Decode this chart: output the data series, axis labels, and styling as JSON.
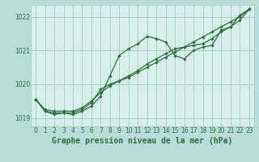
{
  "title": "Graphe pression niveau de la mer (hPa)",
  "background_color": "#b8ddd8",
  "plot_bg_color": "#d8eeea",
  "grid_color": "#99ccbb",
  "line_color": "#2d6e3e",
  "marker_color": "#2d6e3e",
  "xlim": [
    -0.5,
    23.5
  ],
  "ylim": [
    1018.75,
    1022.35
  ],
  "yticks": [
    1019,
    1020,
    1021,
    1022
  ],
  "xticks": [
    0,
    1,
    2,
    3,
    4,
    5,
    6,
    7,
    8,
    9,
    10,
    11,
    12,
    13,
    14,
    15,
    16,
    17,
    18,
    19,
    20,
    21,
    22,
    23
  ],
  "main": [
    1019.55,
    1019.2,
    1019.1,
    1019.15,
    1019.1,
    1019.2,
    1019.35,
    1019.65,
    1020.25,
    1020.85,
    1021.05,
    1021.2,
    1021.42,
    1021.35,
    1021.25,
    1020.85,
    1020.75,
    1021.0,
    1021.1,
    1021.15,
    1021.6,
    1021.7,
    1022.05,
    1022.22
  ],
  "linear1": [
    1019.55,
    1019.2,
    1019.15,
    1019.15,
    1019.15,
    1019.25,
    1019.45,
    1019.85,
    1020.0,
    1020.1,
    1020.2,
    1020.35,
    1020.5,
    1020.65,
    1020.8,
    1020.95,
    1021.1,
    1021.25,
    1021.4,
    1021.55,
    1021.7,
    1021.85,
    1022.0,
    1022.22
  ],
  "linear2": [
    1019.55,
    1019.25,
    1019.2,
    1019.2,
    1019.2,
    1019.3,
    1019.5,
    1019.75,
    1019.95,
    1020.1,
    1020.25,
    1020.4,
    1020.6,
    1020.75,
    1020.9,
    1021.05,
    1021.1,
    1021.15,
    1021.2,
    1021.35,
    1021.55,
    1021.7,
    1021.9,
    1022.22
  ],
  "title_fontsize": 7.0,
  "tick_fontsize": 5.5
}
